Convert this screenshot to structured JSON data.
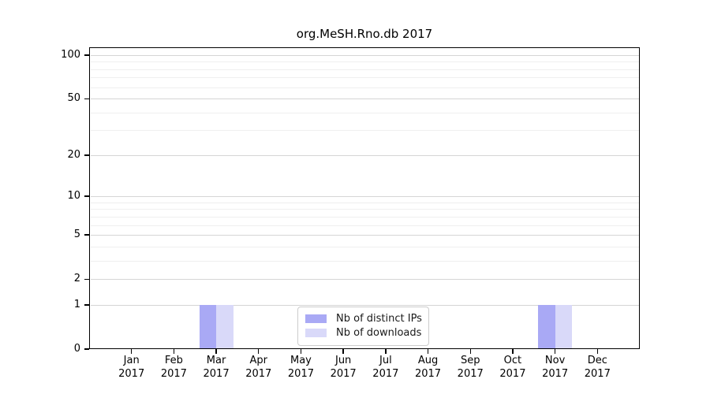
{
  "chart_data": {
    "type": "bar",
    "title": "org.MeSH.Rno.db 2017",
    "categories": [
      "Jan",
      "Feb",
      "Mar",
      "Apr",
      "May",
      "Jun",
      "Jul",
      "Aug",
      "Sep",
      "Oct",
      "Nov",
      "Dec"
    ],
    "x_year_line": "2017",
    "series": [
      {
        "name": "Nb of distinct IPs",
        "color": "#a9a9f5",
        "values": [
          0,
          0,
          1,
          0,
          0,
          0,
          0,
          0,
          0,
          0,
          1,
          0
        ]
      },
      {
        "name": "Nb of downloads",
        "color": "#d9d9f9",
        "values": [
          0,
          0,
          1,
          0,
          0,
          0,
          0,
          0,
          0,
          0,
          1,
          0
        ]
      }
    ],
    "y_axis": {
      "scale": "log1p",
      "ticks": [
        0,
        1,
        2,
        5,
        10,
        20,
        50,
        100
      ],
      "minor_gridlines": [
        3,
        4,
        6,
        7,
        8,
        9,
        30,
        40,
        60,
        70,
        80,
        90
      ],
      "range": [
        0,
        100
      ]
    },
    "legend": {
      "position": "bottom-center"
    },
    "grid": true
  },
  "colors": {
    "background": "#ffffff",
    "spine": "#000000",
    "grid_major": "#d5d5d5",
    "grid_minor": "#efefef",
    "legend_border": "#cccccc"
  }
}
